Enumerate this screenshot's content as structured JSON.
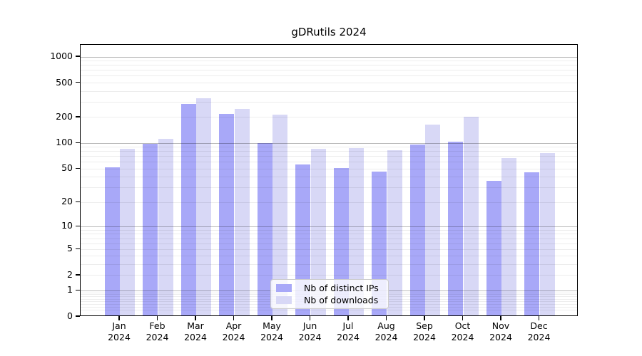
{
  "chart_data": {
    "type": "bar",
    "title": "gDRutils 2024",
    "categories": [
      "Jan",
      "Feb",
      "Mar",
      "Apr",
      "May",
      "Jun",
      "Jul",
      "Aug",
      "Sep",
      "Oct",
      "Nov",
      "Dec"
    ],
    "category_year": "2024",
    "series": [
      {
        "name": "Nb of distinct IPs",
        "color": "#a8a8f8",
        "values": [
          50,
          94,
          277,
          212,
          97,
          54,
          49,
          45,
          93,
          101,
          35,
          44
        ]
      },
      {
        "name": "Nb of downloads",
        "color": "#d8d8f6",
        "values": [
          83,
          108,
          320,
          242,
          208,
          83,
          84,
          80,
          160,
          197,
          65,
          74
        ]
      }
    ],
    "ylabel": "",
    "xlabel": "",
    "y_scale": "log1p",
    "y_ticks": [
      0,
      1,
      2,
      5,
      10,
      20,
      50,
      100,
      200,
      500,
      1000
    ],
    "y_axis_top_value": 1381,
    "grid": {
      "major_gridline_values": [
        1,
        10,
        100,
        1000
      ],
      "minor_gridline_decades": [
        0.1,
        1,
        10,
        100
      ],
      "major_color": "rgba(0,0,0,0.27)",
      "minor_color": "rgba(0,0,0,0.07)"
    },
    "legend_position": "lower center"
  },
  "legend": {
    "items": [
      {
        "label": "Nb of distinct IPs"
      },
      {
        "label": "Nb of downloads"
      }
    ]
  }
}
